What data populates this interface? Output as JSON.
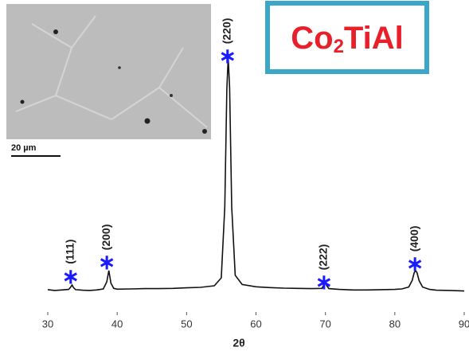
{
  "chart_data": {
    "type": "line",
    "title": [
      "Co",
      "2",
      "TiAl"
    ],
    "x_label": "2θ",
    "inset_scale_label": "20 µm",
    "color": "#111111",
    "marker_color": "#1a1aff",
    "xlim": [
      30,
      90
    ],
    "xticks": [
      30,
      40,
      50,
      60,
      70,
      80,
      90
    ],
    "ylim": [
      0,
      100
    ],
    "x": [
      30,
      31,
      32,
      33,
      33.3,
      33.5,
      33.7,
      34,
      35,
      36,
      37,
      38,
      38.5,
      38.8,
      39.1,
      39.5,
      40,
      42,
      44,
      46,
      48,
      50,
      52,
      54,
      55,
      55.5,
      55.8,
      56,
      56.2,
      56.5,
      57,
      58,
      60,
      62,
      64,
      66,
      68,
      69.5,
      69.8,
      70,
      70.2,
      70.5,
      72,
      74,
      76,
      78,
      80,
      81,
      82,
      82.5,
      82.8,
      83,
      83.2,
      83.5,
      84,
      85,
      86,
      88,
      90
    ],
    "values": [
      8.5,
      8.2,
      8.4,
      8.6,
      9.5,
      10.3,
      9.3,
      8.5,
      8.3,
      8.2,
      8.4,
      8.8,
      11.5,
      15.8,
      11,
      9,
      8.7,
      8.8,
      8.9,
      8.9,
      9,
      9.2,
      9.4,
      10,
      13,
      40,
      85,
      97,
      85,
      40,
      14,
      10.5,
      9.6,
      9.3,
      9.1,
      9.0,
      8.9,
      9,
      10.5,
      11,
      10,
      8.9,
      8.6,
      8.4,
      8.4,
      8.5,
      8.6,
      8.8,
      9.5,
      12,
      15,
      15.8,
      15,
      12,
      9.5,
      8.6,
      8.3,
      8.2,
      8.0
    ],
    "peaks": [
      {
        "label": "(111)",
        "x": 33.3,
        "y": 13.3
      },
      {
        "label": "(200)",
        "x": 38.5,
        "y": 18.8
      },
      {
        "label": "(220)",
        "x": 55.9,
        "y": 97.3
      },
      {
        "label": "(222)",
        "x": 69.8,
        "y": 11.2
      },
      {
        "label": "(400)",
        "x": 82.9,
        "y": 18.2
      }
    ]
  }
}
